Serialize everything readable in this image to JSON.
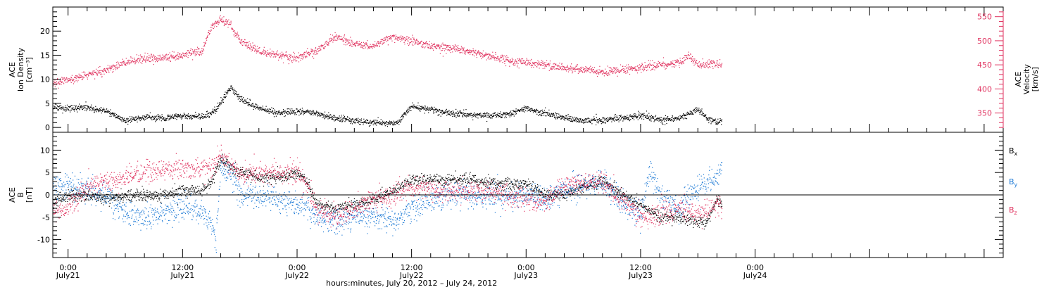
{
  "colors": {
    "axis": "#000000",
    "black_series": "#000000",
    "pink_series": "#e0325f",
    "blue_series": "#1f7bd6",
    "background": "#ffffff"
  },
  "xaxis": {
    "label": "hours:minutes, July 20, 2012 – July 24, 2012",
    "range_hours": [
      -1.6,
      98.0
    ],
    "ticks": [
      {
        "hour": 0,
        "time": "0:00",
        "date": "July21"
      },
      {
        "hour": 12,
        "time": "12:00",
        "date": "July21"
      },
      {
        "hour": 24,
        "time": "0:00",
        "date": "July22"
      },
      {
        "hour": 36,
        "time": "12:00",
        "date": "July22"
      },
      {
        "hour": 48,
        "time": "0:00",
        "date": "July23"
      },
      {
        "hour": 60,
        "time": "12:00",
        "date": "July23"
      },
      {
        "hour": 72,
        "time": "0:00",
        "date": "July24"
      }
    ],
    "minor_tick_hours": 2
  },
  "chart_data": [
    {
      "type": "scatter",
      "panel": "top",
      "ylabel_left": [
        "ACE",
        "Ion Density",
        "[cm⁻³]"
      ],
      "ylabel_right": [
        "ACE",
        "Velocity",
        "[km/s]"
      ],
      "ylim_left": [
        -1,
        25
      ],
      "ylim_right": [
        310,
        570
      ],
      "yticks_left": [
        "0",
        "5",
        "10",
        "15",
        "20"
      ],
      "yticks_left_values": [
        0,
        5,
        10,
        15,
        20
      ],
      "yticks_right": [
        "350",
        "400",
        "450",
        "500",
        "550"
      ],
      "yticks_right_values": [
        350,
        400,
        450,
        500,
        550
      ],
      "series": [
        {
          "color": "#000000",
          "axis": "left",
          "scatter": 0.6,
          "x": [
            -2,
            0,
            2,
            4,
            6,
            8,
            10,
            12,
            14,
            15,
            16,
            17,
            18,
            20,
            22,
            24,
            26,
            28,
            30,
            32,
            34,
            34.5,
            36,
            38,
            40,
            42,
            44,
            46,
            48,
            50,
            52,
            54,
            56,
            58,
            60,
            62,
            64,
            66,
            67,
            68,
            68.5
          ],
          "values": [
            4.5,
            4.0,
            4.2,
            3.5,
            1.5,
            2.2,
            2.0,
            2.5,
            2.3,
            3.0,
            5.0,
            8.5,
            6.0,
            4.0,
            3.0,
            3.5,
            3.0,
            2.0,
            1.5,
            1.0,
            1.0,
            1.2,
            4.5,
            3.8,
            3.0,
            2.8,
            2.5,
            2.8,
            4.0,
            3.0,
            2.0,
            1.5,
            1.6,
            2.0,
            2.5,
            1.6,
            2.0,
            4.0,
            2.0,
            1.2,
            1.2
          ]
        },
        {
          "color": "#e0325f",
          "axis": "right",
          "scatter": 8,
          "x": [
            -2,
            0,
            2,
            4,
            6,
            8,
            10,
            12,
            14,
            15,
            16,
            17,
            18,
            20,
            22,
            24,
            26,
            28,
            30,
            32,
            34,
            36,
            38,
            40,
            42,
            44,
            46,
            48,
            50,
            52,
            54,
            56,
            58,
            60,
            62,
            64,
            65,
            66,
            68,
            68.5
          ],
          "values": [
            410,
            420,
            430,
            440,
            455,
            465,
            465,
            470,
            480,
            530,
            545,
            535,
            500,
            480,
            470,
            465,
            480,
            510,
            495,
            490,
            510,
            500,
            490,
            485,
            480,
            470,
            460,
            455,
            450,
            445,
            440,
            435,
            440,
            445,
            450,
            455,
            470,
            450,
            455,
            450
          ]
        }
      ]
    },
    {
      "type": "scatter",
      "panel": "bottom",
      "ylabel_left": [
        "ACE",
        "B",
        "[nT]"
      ],
      "ylim": [
        -14,
        14
      ],
      "yticks": [
        "-10",
        "-5",
        "0",
        "5",
        "10"
      ],
      "yticks_values": [
        -10,
        -5,
        0,
        5,
        10
      ],
      "zero_line": true,
      "series": [
        {
          "name": "B",
          "sub": "x",
          "color": "#000000",
          "scatter": 1.2,
          "x": [
            -2,
            0,
            2,
            4,
            6,
            8,
            10,
            12,
            14,
            15,
            16,
            18,
            20,
            22,
            24,
            25,
            26,
            28,
            30,
            32,
            34,
            36,
            38,
            40,
            42,
            44,
            46,
            48,
            50,
            52,
            54,
            56,
            57,
            58,
            60,
            62,
            64,
            66,
            67,
            68,
            68.5
          ],
          "values": [
            -2,
            0,
            0,
            -1,
            0,
            0,
            0,
            1,
            1,
            3,
            8,
            5,
            4,
            4,
            5,
            3,
            -2,
            -3,
            -2,
            -1,
            1,
            3.5,
            3.5,
            3.5,
            3.5,
            3.0,
            2.5,
            2.5,
            0,
            0,
            2,
            3,
            2,
            0,
            -2,
            -5,
            -5,
            -6,
            -6,
            -1,
            -2
          ]
        },
        {
          "name": "B",
          "sub": "y",
          "color": "#1f7bd6",
          "scatter": 2.5,
          "x": [
            -2,
            0,
            2,
            4,
            6,
            8,
            10,
            12,
            14,
            15,
            15.5,
            16,
            17,
            18,
            20,
            22,
            24,
            25,
            26,
            28,
            30,
            32,
            34,
            36,
            38,
            40,
            42,
            44,
            46,
            48,
            50,
            52,
            54,
            56,
            58,
            60,
            61,
            62,
            64,
            66,
            68,
            68.5
          ],
          "values": [
            2,
            2,
            1,
            0,
            -4,
            -5,
            -4,
            -3,
            -4,
            -7,
            -10,
            7,
            5,
            0,
            0,
            -1,
            -2,
            -3,
            -5,
            -6,
            -5,
            -5,
            -6,
            -3,
            -1,
            0,
            0,
            -0.5,
            -0.5,
            0,
            -1,
            1,
            2,
            3,
            -2,
            -4,
            6,
            0,
            -3,
            2,
            4,
            6
          ]
        },
        {
          "name": "B",
          "sub": "z",
          "color": "#e0325f",
          "scatter": 2.2,
          "x": [
            -2,
            0,
            2,
            4,
            6,
            8,
            10,
            12,
            14,
            15,
            16,
            17,
            18,
            20,
            22,
            24,
            25,
            26,
            28,
            30,
            32,
            34,
            36,
            37,
            38,
            40,
            42,
            44,
            46,
            48,
            50,
            52,
            54,
            56,
            58,
            60,
            62,
            64,
            66,
            68,
            68.5
          ],
          "values": [
            -4,
            -3,
            2,
            3,
            4,
            5,
            6,
            6,
            6,
            6,
            9,
            7,
            5,
            5,
            5,
            5,
            2,
            -3,
            -5,
            -3,
            -1,
            0,
            2,
            2,
            1,
            1,
            1,
            0.5,
            0,
            -1,
            -1,
            2,
            3,
            3,
            -1,
            -5,
            -4,
            -3,
            -4,
            -2,
            -3
          ]
        }
      ]
    }
  ]
}
